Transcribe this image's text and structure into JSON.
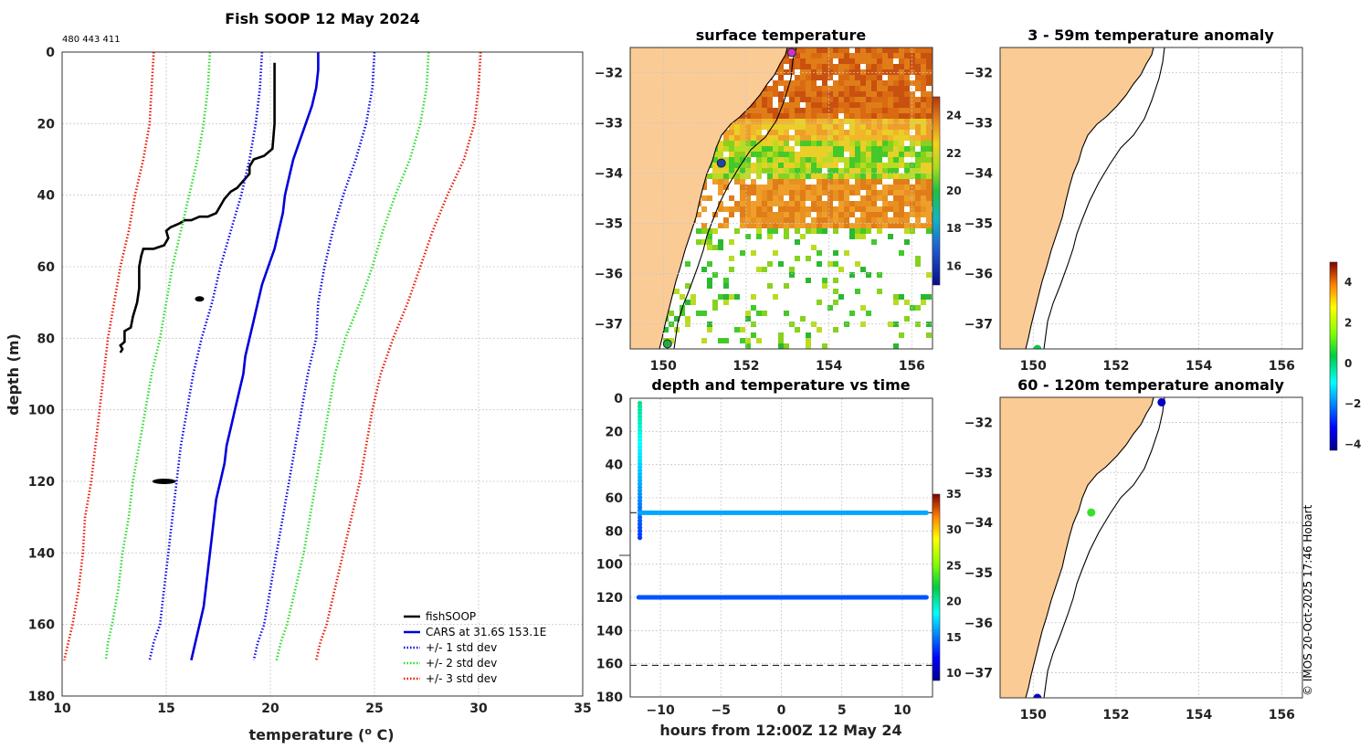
{
  "page": {
    "credit": "© IMOS 20-Oct-2025 17:46 Hobart"
  },
  "colors": {
    "fishsoop": "#000000",
    "cars": "#0000dd",
    "std1": "#0000ee",
    "std2": "#22dd22",
    "std3": "#ee1100",
    "land": "#fbcb96",
    "coast": "#000000"
  },
  "chart_data": [
    {
      "type": "line",
      "id": "profile",
      "title": "Fish SOOP 12 May 2024",
      "subtitle": "480 443 411",
      "xlabel": "temperature (",
      "xlabel_sup": "o",
      "xlabel_tail": " C)",
      "ylabel": "depth (m)",
      "xlim": [
        10,
        35
      ],
      "ylim": [
        180,
        0
      ],
      "xticks": [
        10,
        15,
        20,
        25,
        30,
        35
      ],
      "yticks": [
        0,
        20,
        40,
        60,
        80,
        100,
        120,
        140,
        160,
        180
      ],
      "legend": [
        "fishSOOP",
        "CARS at 31.6S 153.1E",
        "+/- 1 std dev",
        "+/- 2 std dev",
        "+/- 3 std dev"
      ],
      "legend_position": "bottom-right",
      "series": [
        {
          "name": "fishSOOP",
          "style": "solid",
          "color": "#000000",
          "points": [
            [
              20.2,
              3
            ],
            [
              20.2,
              10
            ],
            [
              20.2,
              20
            ],
            [
              20.1,
              27
            ],
            [
              19.7,
              29
            ],
            [
              19.2,
              30
            ],
            [
              19.0,
              32
            ],
            [
              19.0,
              34
            ],
            [
              18.7,
              36
            ],
            [
              18.4,
              38
            ],
            [
              18.1,
              39
            ],
            [
              17.8,
              41
            ],
            [
              17.6,
              43
            ],
            [
              17.4,
              45
            ],
            [
              17.0,
              46
            ],
            [
              16.6,
              46
            ],
            [
              16.2,
              47
            ],
            [
              15.9,
              47
            ],
            [
              15.6,
              48
            ],
            [
              15.2,
              49
            ],
            [
              15.0,
              50
            ],
            [
              15.1,
              52
            ],
            [
              14.9,
              54
            ],
            [
              14.4,
              55
            ],
            [
              13.9,
              55
            ],
            [
              13.8,
              57
            ],
            [
              13.7,
              60
            ],
            [
              13.7,
              63
            ],
            [
              13.7,
              66
            ],
            [
              13.6,
              70
            ],
            [
              13.4,
              74
            ],
            [
              13.3,
              77
            ],
            [
              13.0,
              78
            ],
            [
              13.0,
              80
            ],
            [
              13.0,
              81
            ],
            [
              12.8,
              82
            ],
            [
              12.9,
              83
            ],
            [
              12.8,
              84
            ]
          ]
        },
        {
          "name": "fishSOOP-blob-a",
          "style": "blob",
          "color": "#000000",
          "points": [
            [
              16.6,
              69
            ]
          ]
        },
        {
          "name": "fishSOOP-blob-b",
          "style": "blob",
          "color": "#000000",
          "points": [
            [
              14.9,
              120
            ]
          ]
        },
        {
          "name": "CARS",
          "style": "solid",
          "color": "#0000dd",
          "points": [
            [
              22.3,
              0
            ],
            [
              22.3,
              5
            ],
            [
              22.2,
              10
            ],
            [
              22.0,
              15
            ],
            [
              21.7,
              20
            ],
            [
              21.4,
              25
            ],
            [
              21.1,
              30
            ],
            [
              20.9,
              35
            ],
            [
              20.7,
              40
            ],
            [
              20.6,
              45
            ],
            [
              20.4,
              50
            ],
            [
              20.2,
              55
            ],
            [
              19.9,
              60
            ],
            [
              19.6,
              65
            ],
            [
              19.4,
              70
            ],
            [
              19.2,
              75
            ],
            [
              19.0,
              80
            ],
            [
              18.8,
              85
            ],
            [
              18.7,
              90
            ],
            [
              18.5,
              95
            ],
            [
              18.3,
              100
            ],
            [
              18.1,
              105
            ],
            [
              17.9,
              110
            ],
            [
              17.8,
              115
            ],
            [
              17.6,
              120
            ],
            [
              17.4,
              125
            ],
            [
              17.3,
              130
            ],
            [
              17.2,
              135
            ],
            [
              17.1,
              140
            ],
            [
              17.0,
              145
            ],
            [
              16.9,
              150
            ],
            [
              16.8,
              155
            ],
            [
              16.6,
              160
            ],
            [
              16.4,
              165
            ],
            [
              16.2,
              170
            ]
          ]
        },
        {
          "name": "+1 std",
          "style": "dotted",
          "color": "#0000ee",
          "points": [
            [
              25.0,
              0
            ],
            [
              24.9,
              10
            ],
            [
              24.6,
              20
            ],
            [
              24.1,
              30
            ],
            [
              23.5,
              40
            ],
            [
              23.0,
              50
            ],
            [
              22.6,
              60
            ],
            [
              22.3,
              70
            ],
            [
              22.2,
              80
            ],
            [
              21.8,
              90
            ],
            [
              21.5,
              100
            ],
            [
              21.2,
              110
            ],
            [
              20.9,
              120
            ],
            [
              20.6,
              130
            ],
            [
              20.3,
              140
            ],
            [
              20.0,
              150
            ],
            [
              19.7,
              160
            ],
            [
              19.4,
              165
            ],
            [
              19.2,
              170
            ]
          ]
        },
        {
          "name": "-1 std",
          "style": "dotted",
          "color": "#0000ee",
          "points": [
            [
              19.6,
              0
            ],
            [
              19.5,
              10
            ],
            [
              19.3,
              20
            ],
            [
              19.0,
              30
            ],
            [
              18.6,
              40
            ],
            [
              18.1,
              50
            ],
            [
              17.6,
              60
            ],
            [
              17.2,
              70
            ],
            [
              16.7,
              80
            ],
            [
              16.3,
              90
            ],
            [
              16.0,
              100
            ],
            [
              15.7,
              110
            ],
            [
              15.5,
              120
            ],
            [
              15.3,
              130
            ],
            [
              15.1,
              140
            ],
            [
              14.9,
              150
            ],
            [
              14.7,
              160
            ],
            [
              14.4,
              165
            ],
            [
              14.2,
              170
            ]
          ]
        },
        {
          "name": "+2 std",
          "style": "dotted",
          "color": "#22dd22",
          "points": [
            [
              27.6,
              0
            ],
            [
              27.5,
              10
            ],
            [
              27.2,
              20
            ],
            [
              26.7,
              30
            ],
            [
              26.0,
              40
            ],
            [
              25.4,
              50
            ],
            [
              24.9,
              60
            ],
            [
              24.3,
              70
            ],
            [
              23.6,
              80
            ],
            [
              23.1,
              90
            ],
            [
              22.8,
              100
            ],
            [
              22.5,
              110
            ],
            [
              22.2,
              120
            ],
            [
              21.9,
              130
            ],
            [
              21.6,
              140
            ],
            [
              21.2,
              150
            ],
            [
              20.8,
              160
            ],
            [
              20.5,
              165
            ],
            [
              20.3,
              170
            ]
          ]
        },
        {
          "name": "-2 std",
          "style": "dotted",
          "color": "#22dd22",
          "points": [
            [
              17.1,
              0
            ],
            [
              17.0,
              10
            ],
            [
              16.8,
              20
            ],
            [
              16.5,
              30
            ],
            [
              16.1,
              40
            ],
            [
              15.7,
              50
            ],
            [
              15.3,
              60
            ],
            [
              15.0,
              70
            ],
            [
              14.7,
              80
            ],
            [
              14.3,
              90
            ],
            [
              14.0,
              100
            ],
            [
              13.7,
              110
            ],
            [
              13.4,
              120
            ],
            [
              13.2,
              130
            ],
            [
              12.9,
              140
            ],
            [
              12.7,
              150
            ],
            [
              12.4,
              160
            ],
            [
              12.2,
              165
            ],
            [
              12.1,
              170
            ]
          ]
        },
        {
          "name": "+3 std",
          "style": "dotted",
          "color": "#ee1100",
          "points": [
            [
              30.1,
              0
            ],
            [
              30.0,
              10
            ],
            [
              29.8,
              20
            ],
            [
              29.3,
              30
            ],
            [
              28.5,
              40
            ],
            [
              27.8,
              50
            ],
            [
              27.2,
              60
            ],
            [
              26.6,
              70
            ],
            [
              25.9,
              80
            ],
            [
              25.3,
              90
            ],
            [
              24.9,
              100
            ],
            [
              24.6,
              110
            ],
            [
              24.3,
              120
            ],
            [
              23.9,
              130
            ],
            [
              23.5,
              140
            ],
            [
              23.1,
              150
            ],
            [
              22.7,
              160
            ],
            [
              22.4,
              165
            ],
            [
              22.2,
              170
            ]
          ]
        },
        {
          "name": "-3 std",
          "style": "dotted",
          "color": "#ee1100",
          "points": [
            [
              14.4,
              0
            ],
            [
              14.3,
              10
            ],
            [
              14.2,
              20
            ],
            [
              13.9,
              30
            ],
            [
              13.5,
              40
            ],
            [
              13.2,
              50
            ],
            [
              12.8,
              60
            ],
            [
              12.5,
              70
            ],
            [
              12.2,
              80
            ],
            [
              12.0,
              90
            ],
            [
              11.8,
              100
            ],
            [
              11.6,
              110
            ],
            [
              11.4,
              120
            ],
            [
              11.1,
              130
            ],
            [
              11.0,
              140
            ],
            [
              10.8,
              150
            ],
            [
              10.5,
              160
            ],
            [
              10.3,
              165
            ],
            [
              10.1,
              170
            ]
          ]
        }
      ]
    },
    {
      "type": "heatmap",
      "id": "sst",
      "title": "surface temperature",
      "xlim": [
        149.2,
        156.5
      ],
      "ylim": [
        -37.5,
        -31.5
      ],
      "xticks": [
        150,
        152,
        154,
        156
      ],
      "yticks": [
        -32,
        -33,
        -34,
        -35,
        -36,
        -37
      ],
      "colorbar": {
        "range": [
          15,
          25
        ],
        "ticks": [
          16,
          18,
          20,
          22,
          24
        ]
      },
      "markers": [
        {
          "name": "fish-position",
          "lon": 153.1,
          "lat": -31.6,
          "color": "#cc33cc"
        },
        {
          "name": "station-mid",
          "lon": 151.4,
          "lat": -33.8,
          "color": "#2244aa"
        },
        {
          "name": "station-south",
          "lon": 150.1,
          "lat": -37.4,
          "color": "#22aa44"
        }
      ]
    },
    {
      "type": "scatter",
      "id": "depth-time",
      "title": "depth and temperature vs time",
      "xlabel": "hours from 12:00Z 12 May 24",
      "xlim": [
        -12.5,
        12.5
      ],
      "ylim": [
        180,
        0
      ],
      "xticks": [
        -10,
        -5,
        0,
        5,
        10
      ],
      "yticks": [
        0,
        20,
        40,
        60,
        80,
        100,
        120,
        140,
        160,
        180
      ],
      "colorbar": {
        "range": [
          9,
          35
        ],
        "ticks": [
          10,
          15,
          20,
          25,
          30,
          35
        ]
      },
      "reference_depths": [
        69,
        161
      ],
      "series": [
        {
          "name": "descent",
          "x": -11.7,
          "depth_start": 3,
          "depth_end": 84,
          "temp_start": 20.5,
          "temp_end": 13.5
        },
        {
          "name": "layer-69m",
          "x_start": -11.7,
          "x_end": 12,
          "depth": 69,
          "temp": 16.2
        },
        {
          "name": "layer-120m",
          "x_start": -11.8,
          "x_end": 12,
          "depth": 120,
          "temp": 14.2
        }
      ]
    },
    {
      "type": "heatmap",
      "id": "anom-upper",
      "title": "3 - 59m temperature anomaly",
      "xlim": [
        149.2,
        156.5
      ],
      "ylim": [
        -37.5,
        -31.5
      ],
      "xticks": [
        150,
        152,
        154,
        156
      ],
      "yticks": [
        -32,
        -33,
        -34,
        -35,
        -36,
        -37
      ],
      "points": [
        {
          "lon": 150.1,
          "lat": -37.5,
          "anomaly": 0.3
        }
      ]
    },
    {
      "type": "heatmap",
      "id": "anom-lower",
      "title": "60 - 120m temperature anomaly",
      "xlim": [
        149.2,
        156.5
      ],
      "ylim": [
        -37.5,
        -31.5
      ],
      "xticks": [
        150,
        152,
        154,
        156
      ],
      "yticks": [
        -32,
        -33,
        -34,
        -35,
        -36,
        -37
      ],
      "points": [
        {
          "lon": 153.1,
          "lat": -31.6,
          "anomaly": -3.8
        },
        {
          "lon": 151.4,
          "lat": -33.8,
          "anomaly": 0.8
        },
        {
          "lon": 150.1,
          "lat": -37.5,
          "anomaly": -3.6
        }
      ]
    },
    {
      "type": "heatmap",
      "id": "anomaly-colorbar",
      "colorbar": {
        "range": [
          -4.3,
          5
        ],
        "ticks": [
          -4,
          -2,
          0,
          2,
          4
        ]
      }
    }
  ]
}
